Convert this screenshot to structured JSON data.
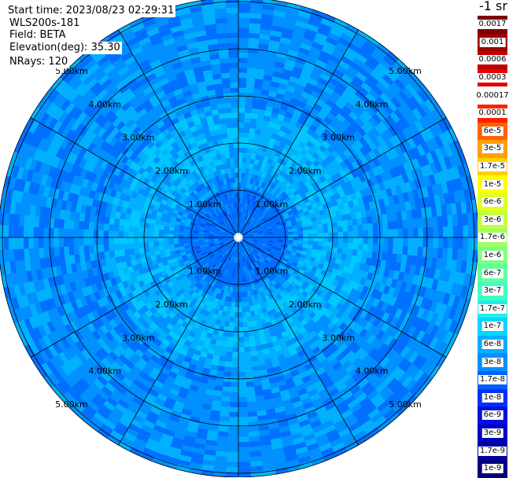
{
  "header": {
    "start_time": "Start time: 2023/08/23 02:29:31",
    "instrument": "WLS200s-181",
    "field": "Field: BETA",
    "elevation_label": "Elevation(deg):",
    "elevation_value": "35.30",
    "nrays": "NRays: 120"
  },
  "colorbar": {
    "unit_label": "-1 sr",
    "ticks": [
      {
        "label": "0.0017",
        "color": "#800000"
      },
      {
        "label": "0.001",
        "color": "#9a0000"
      },
      {
        "label": "0.0006",
        "color": "#c00000"
      },
      {
        "label": "0.0003",
        "color": "#e60000"
      },
      {
        "label": "0.00017",
        "color": "#ffffff"
      },
      {
        "label": "0.0001",
        "color": "#ff2000"
      },
      {
        "label": "6e-5",
        "color": "#ff6000"
      },
      {
        "label": "3e-5",
        "color": "#ffa000"
      },
      {
        "label": "1.7e-5",
        "color": "#ffd000"
      },
      {
        "label": "1e-5",
        "color": "#ffff00"
      },
      {
        "label": "6e-6",
        "color": "#e0ff20"
      },
      {
        "label": "3e-6",
        "color": "#c0ff40"
      },
      {
        "label": "1.7e-6",
        "color": "#a0ff60"
      },
      {
        "label": "1e-6",
        "color": "#80ff80"
      },
      {
        "label": "6e-7",
        "color": "#60ffa0"
      },
      {
        "label": "3e-7",
        "color": "#40ffc0"
      },
      {
        "label": "1.7e-7",
        "color": "#20f0e8"
      },
      {
        "label": "1e-7",
        "color": "#00d8ff"
      },
      {
        "label": "6e-8",
        "color": "#00b0ff"
      },
      {
        "label": "3e-8",
        "color": "#0090ff"
      },
      {
        "label": "1.7e-8",
        "color": "#0060ff"
      },
      {
        "label": "1e-8",
        "color": "#0030ff"
      },
      {
        "label": "6e-9",
        "color": "#0010e0"
      },
      {
        "label": "3e-9",
        "color": "#0000c0"
      },
      {
        "label": "1.7e-9",
        "color": "#0000a0"
      },
      {
        "label": "1e-9",
        "color": "#000080"
      }
    ]
  },
  "rings": [
    "1.00km",
    "2.00km",
    "3.00km",
    "4.00km",
    "5.00km"
  ],
  "colors": {
    "background": "#ffffff",
    "palette": [
      "#0050f0",
      "#0070ff",
      "#0090ff",
      "#00b0ff",
      "#00c8ff",
      "#10d8ff"
    ]
  }
}
